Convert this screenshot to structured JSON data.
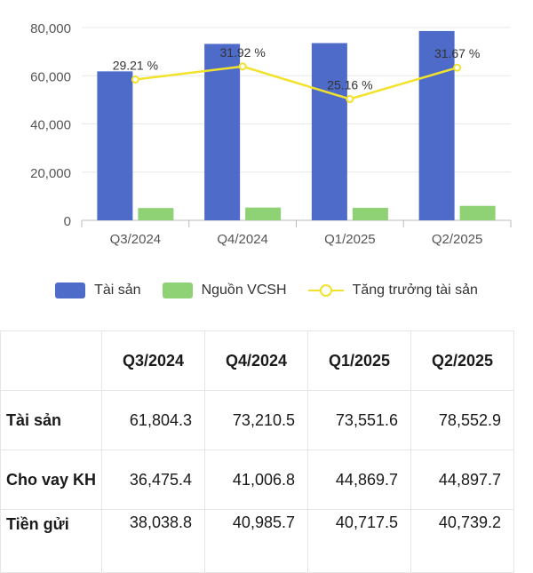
{
  "chart_data": {
    "type": "bar",
    "categories": [
      "Q3/2024",
      "Q4/2024",
      "Q1/2025",
      "Q2/2025"
    ],
    "series": [
      {
        "name": "Tài sản",
        "kind": "bar",
        "color": "#4f6bc9",
        "values": [
          61804.3,
          73210.5,
          73551.6,
          78552.9
        ]
      },
      {
        "name": "Nguồn VCSH",
        "kind": "bar",
        "color": "#8fd175",
        "values": [
          5100,
          5300,
          5200,
          6000
        ]
      },
      {
        "name": "Tăng trưởng tài sản",
        "kind": "line",
        "color": "#f2e22c",
        "axis": "secondary",
        "values": [
          29.21,
          31.92,
          25.16,
          31.67
        ],
        "labels": [
          "29.21 %",
          "31.92 %",
          "25.16 %",
          "31.67 %"
        ]
      }
    ],
    "y_ticks": [
      "0",
      "20,000",
      "40,000",
      "60,000",
      "80,000"
    ],
    "ylim": [
      0,
      80000
    ],
    "y2lim": [
      0,
      40
    ],
    "legend_position": "bottom",
    "grid": true
  },
  "table": {
    "headers": [
      "",
      "Q3/2024",
      "Q4/2024",
      "Q1/2025",
      "Q2/2025"
    ],
    "rows": [
      {
        "label": "Tài sản",
        "values": [
          "61,804.3",
          "73,210.5",
          "73,551.6",
          "78,552.9"
        ]
      },
      {
        "label": "Cho vay KH",
        "values": [
          "36,475.4",
          "41,006.8",
          "44,869.7",
          "44,897.7"
        ]
      },
      {
        "label": "Tiền gửi",
        "values": [
          "38,038.8",
          "40,985.7",
          "40,717.5",
          "40,739.2"
        ]
      }
    ]
  }
}
